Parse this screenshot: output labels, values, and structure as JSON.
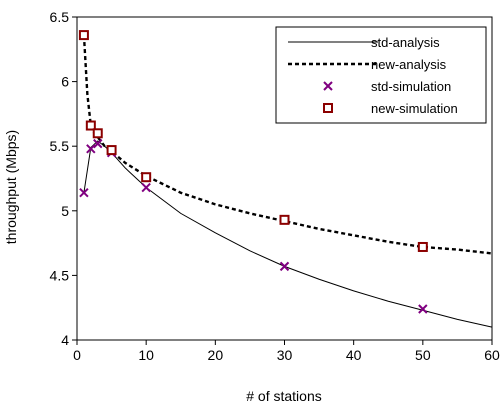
{
  "chart_data": {
    "type": "line",
    "title": "",
    "xlabel": "# of stations",
    "ylabel": "throughput (Mbps)",
    "xlim": [
      0,
      60
    ],
    "ylim": [
      4,
      6.5
    ],
    "xticks": [
      "0",
      "10",
      "20",
      "30",
      "40",
      "50",
      "60"
    ],
    "yticks": [
      "4",
      "4.5",
      "5",
      "5.5",
      "6",
      "6.5"
    ],
    "grid": false,
    "legend_position": "top-right",
    "series": [
      {
        "name": "std-analysis",
        "kind": "line",
        "style": "solid",
        "color": "#000000",
        "x": [
          1,
          2,
          3,
          4,
          5,
          7,
          10,
          15,
          20,
          25,
          30,
          35,
          40,
          45,
          50,
          55,
          60
        ],
        "y": [
          5.14,
          5.49,
          5.54,
          5.5,
          5.45,
          5.33,
          5.18,
          4.98,
          4.83,
          4.69,
          4.57,
          4.47,
          4.38,
          4.3,
          4.23,
          4.16,
          4.1
        ]
      },
      {
        "name": "new-analysis",
        "kind": "line",
        "style": "dashed",
        "color": "#000000",
        "x": [
          1,
          1.5,
          2,
          2.5,
          3,
          4,
          5,
          7,
          10,
          15,
          20,
          25,
          30,
          35,
          40,
          45,
          50,
          55,
          60
        ],
        "y": [
          6.36,
          5.9,
          5.66,
          5.6,
          5.57,
          5.5,
          5.46,
          5.37,
          5.27,
          5.14,
          5.05,
          4.98,
          4.92,
          4.86,
          4.81,
          4.76,
          4.72,
          4.7,
          4.67
        ]
      },
      {
        "name": "std-simulation",
        "kind": "scatter",
        "marker": "x",
        "color": "#800080",
        "x": [
          1,
          2,
          3,
          5,
          10,
          30,
          50
        ],
        "y": [
          5.14,
          5.48,
          5.52,
          5.45,
          5.18,
          4.57,
          4.24
        ]
      },
      {
        "name": "new-simulation",
        "kind": "scatter",
        "marker": "square",
        "color": "#8b0000",
        "x": [
          1,
          2,
          3,
          5,
          10,
          30,
          50
        ],
        "y": [
          6.36,
          5.66,
          5.6,
          5.47,
          5.26,
          4.93,
          4.72
        ]
      }
    ]
  }
}
